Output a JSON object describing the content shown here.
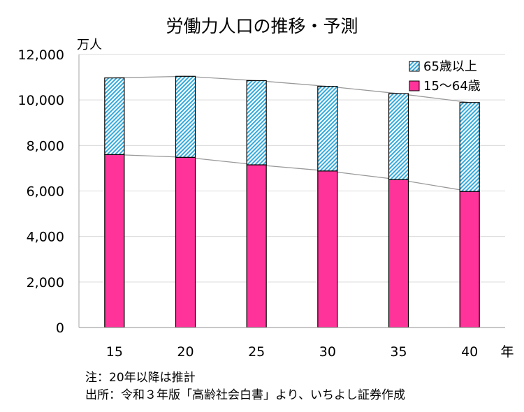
{
  "chart_data": {
    "type": "bar",
    "stacked": true,
    "title": "労働力人口の推移・予測",
    "ylabel": "万人",
    "xlabel": "年",
    "ylim": [
      0,
      12000
    ],
    "yticks": [
      0,
      2000,
      4000,
      6000,
      8000,
      10000,
      12000
    ],
    "ytick_labels": [
      "0",
      "2,000",
      "4,000",
      "6,000",
      "8,000",
      "10,000",
      "12,000"
    ],
    "categories": [
      "15",
      "20",
      "25",
      "30",
      "35",
      "40"
    ],
    "grid": true,
    "legend_position": "top-right",
    "series": [
      {
        "name": "15～64歳",
        "values": [
          7600,
          7480,
          7150,
          6880,
          6500,
          5980
        ],
        "color": "#ff3399",
        "pattern": "solid"
      },
      {
        "name": "65歳以上",
        "values": [
          3370,
          3560,
          3700,
          3720,
          3780,
          3910
        ],
        "color": "#33aadd",
        "pattern": "diagonal-hatch"
      }
    ],
    "trend_lines": true
  },
  "notes": {
    "line1": "注：20年以降は推計",
    "line2": "出所：令和３年版「高齢社会白書」より、いちよし証券作成"
  }
}
